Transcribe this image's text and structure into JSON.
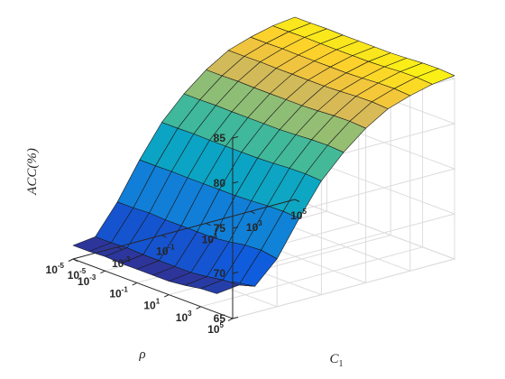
{
  "chart_data": {
    "type": "surface3d",
    "zlabel": "ACC(%)",
    "xlabel": "ρ",
    "ylabel": "C",
    "ylabel_subscript": "1",
    "zlim": [
      65,
      85
    ],
    "z_ticks": [
      "65",
      "70",
      "75",
      "80",
      "85"
    ],
    "rho_tick_exponents": [
      "5",
      "3",
      "1",
      "-1",
      "-3",
      "-5"
    ],
    "c1_tick_exponents": [
      "-5",
      "-3",
      "-1",
      "1",
      "3",
      "5"
    ],
    "tick_base": "10",
    "rho_exponents": [
      5,
      4,
      3,
      2,
      1,
      0,
      -1,
      -2,
      -3,
      -4,
      -5
    ],
    "c1_exponents": [
      -5,
      -4,
      -3,
      -2,
      -1,
      0,
      1,
      2,
      3,
      4,
      5
    ],
    "grid": true,
    "colormap": "parula",
    "acc_profile_along_c1": [
      66.5,
      66.8,
      70,
      74,
      77.5,
      80,
      82,
      83.5,
      84.3,
      84.9,
      85.2
    ],
    "rho_tilt": [
      0.3,
      0.6,
      0.5,
      0.2,
      0,
      0,
      0,
      0,
      0.1,
      0,
      0
    ],
    "edge_row_bump_rho_1e5": 2.3
  }
}
